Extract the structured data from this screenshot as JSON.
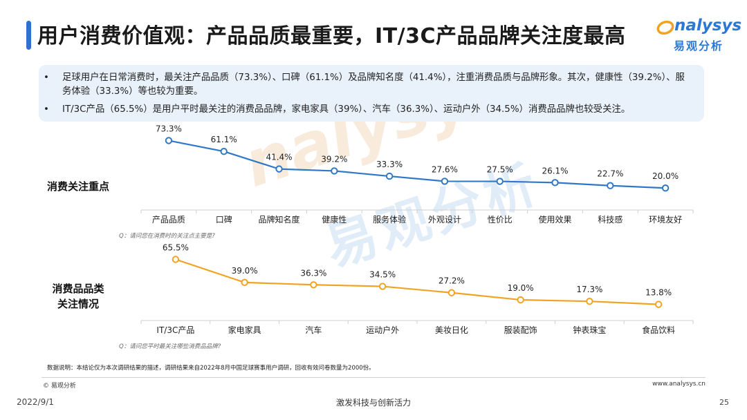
{
  "header": {
    "title": "用户消费价值观：产品品质最重要，IT/3C产品品牌关注度最高",
    "logo_en": "nalysys",
    "logo_cn": "易观分析",
    "accent_color": "#2f6fd0"
  },
  "summary": {
    "bullet": "•",
    "items": [
      "足球用户在日常消费时，最关注产品品质（73.3%）、口碑（61.1%）及品牌知名度（41.4%），注重消费品质与品牌形象。其次，健康性（39.2%）、服务体验（33.3%）等也较为重要。",
      "IT/3C产品（65.5%）是用户平时最关注的消费品品牌，家电家具（39%）、汽车（36.3%）、运动户外（34.5%）消费品品牌也较受关注。"
    ]
  },
  "watermark": {
    "en": "nalysys",
    "cn": "易观分析"
  },
  "chart_data": [
    {
      "type": "line",
      "row_label": "消费关注重点",
      "question": "Q：请问您在消费时的关注点主要是?",
      "categories": [
        "产品品质",
        "口碑",
        "品牌知名度",
        "健康性",
        "服务体验",
        "外观设计",
        "性价比",
        "使用效果",
        "科技感",
        "环境友好"
      ],
      "values": [
        73.3,
        61.1,
        41.4,
        39.2,
        33.3,
        27.6,
        27.5,
        26.1,
        22.7,
        20.0
      ],
      "value_labels": [
        "73.3%",
        "61.1%",
        "41.4%",
        "39.2%",
        "33.3%",
        "27.6%",
        "27.5%",
        "26.1%",
        "22.7%",
        "20.0%"
      ],
      "color": "#2e78c7",
      "ylim": [
        0,
        100
      ]
    },
    {
      "type": "line",
      "row_label": "消费品品类关注情况",
      "question": "Q：请问您平时最关注哪些消费品品牌?",
      "categories": [
        "IT/3C产品",
        "家电家具",
        "汽车",
        "运动户外",
        "美妆日化",
        "服装配饰",
        "钟表珠宝",
        "食品饮料"
      ],
      "values": [
        65.5,
        39.0,
        36.3,
        34.5,
        27.2,
        19.0,
        17.3,
        13.8
      ],
      "value_labels": [
        "65.5%",
        "39.0%",
        "36.3%",
        "34.5%",
        "27.2%",
        "19.0%",
        "17.3%",
        "13.8%"
      ],
      "color": "#f0a323",
      "ylim": [
        0,
        100
      ]
    }
  ],
  "labels": {
    "chart1_row": "消费关注重点",
    "chart2_row_line1": "消费品品类",
    "chart2_row_line2": "关注情况"
  },
  "footer": {
    "data_note": "数据说明：本结论仅为本次调研结果的描述，调研结果来自2022年8月中国足球赛事用户调研，回收有效问卷数量为2000份。",
    "copyright": "© 易观分析",
    "website": "www.analysys.cn",
    "left_text": "2022/9/1",
    "slogan": "激发科技与创新活力",
    "page_number": "25"
  }
}
